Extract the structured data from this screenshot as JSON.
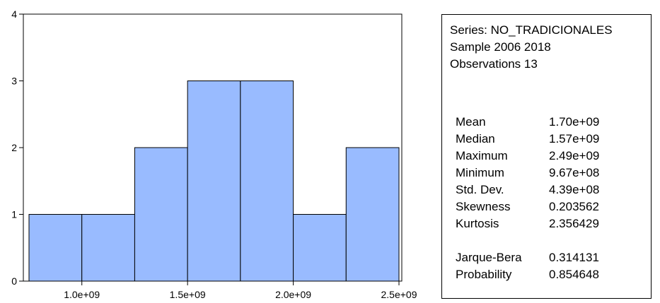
{
  "chart_data": {
    "type": "bar",
    "bins": [
      {
        "x0": 750000000,
        "x1": 1000000000,
        "count": 1
      },
      {
        "x0": 1000000000,
        "x1": 1250000000,
        "count": 1
      },
      {
        "x0": 1250000000,
        "x1": 1500000000,
        "count": 2
      },
      {
        "x0": 1500000000,
        "x1": 1750000000,
        "count": 3
      },
      {
        "x0": 1750000000,
        "x1": 2000000000,
        "count": 3
      },
      {
        "x0": 2000000000,
        "x1": 2250000000,
        "count": 1
      },
      {
        "x0": 2250000000,
        "x1": 2500000000,
        "count": 2
      }
    ],
    "xlim": [
      750000000,
      2500000000
    ],
    "ylim": [
      0,
      4
    ],
    "x_ticks": [
      {
        "value": 1000000000,
        "label": "1.0e+09"
      },
      {
        "value": 1500000000,
        "label": "1.5e+09"
      },
      {
        "value": 2000000000,
        "label": "2.0e+09"
      },
      {
        "value": 2500000000,
        "label": "2.5e+09"
      }
    ],
    "y_ticks": [
      {
        "value": 0,
        "label": "0"
      },
      {
        "value": 1,
        "label": "1"
      },
      {
        "value": 2,
        "label": "2"
      },
      {
        "value": 3,
        "label": "3"
      },
      {
        "value": 4,
        "label": "4"
      }
    ],
    "bar_color": "#99bbff",
    "grid": false
  },
  "stats": {
    "series": "Series: NO_TRADICIONALES",
    "sample": "Sample 2006 2018",
    "observations": "Observations 13",
    "rows": [
      {
        "label": "Mean",
        "value": "1.70e+09"
      },
      {
        "label": "Median",
        "value": "1.57e+09"
      },
      {
        "label": "Maximum",
        "value": "2.49e+09"
      },
      {
        "label": "Minimum",
        "value": "9.67e+08"
      },
      {
        "label": "Std. Dev.",
        "value": "4.39e+08"
      },
      {
        "label": "Skewness",
        "value": "0.203562"
      },
      {
        "label": "Kurtosis",
        "value": "2.356429"
      }
    ],
    "tests": [
      {
        "label": "Jarque-Bera",
        "value": "0.314131"
      },
      {
        "label": "Probability",
        "value": "0.854648"
      }
    ]
  }
}
